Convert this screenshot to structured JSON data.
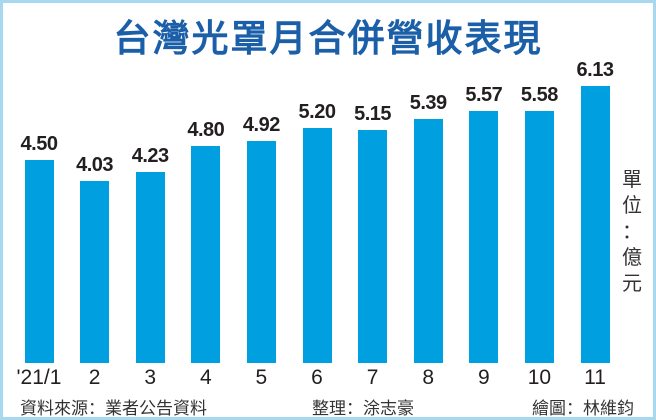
{
  "header": {
    "title": "台灣光罩月合併營收表現"
  },
  "unit_label": [
    "單",
    "位",
    "：",
    "億",
    "元"
  ],
  "footer": {
    "source": "資料來源：業者公告資料",
    "editor": "整理：涂志豪",
    "illustrator": "繪圖：林維鈞"
  },
  "colors": {
    "bar": "#00a0e0",
    "title": "#1a5fa8",
    "frame": "#a8d8f0",
    "text": "#231f20"
  },
  "chart_data": {
    "type": "bar",
    "title": "台灣光罩月合併營收表現",
    "xlabel": "",
    "ylabel": "單位：億元",
    "categories": [
      "'21/1",
      "2",
      "3",
      "4",
      "5",
      "6",
      "7",
      "8",
      "9",
      "10",
      "11"
    ],
    "values": [
      4.5,
      4.03,
      4.23,
      4.8,
      4.92,
      5.2,
      5.15,
      5.39,
      5.57,
      5.58,
      6.13
    ],
    "value_labels": [
      "4.50",
      "4.03",
      "4.23",
      "4.80",
      "4.92",
      "5.20",
      "5.15",
      "5.39",
      "5.57",
      "5.58",
      "6.13"
    ],
    "ylim": [
      0,
      6.13
    ],
    "grid": false,
    "legend": "none",
    "annotations": [
      "單位：億元"
    ]
  }
}
